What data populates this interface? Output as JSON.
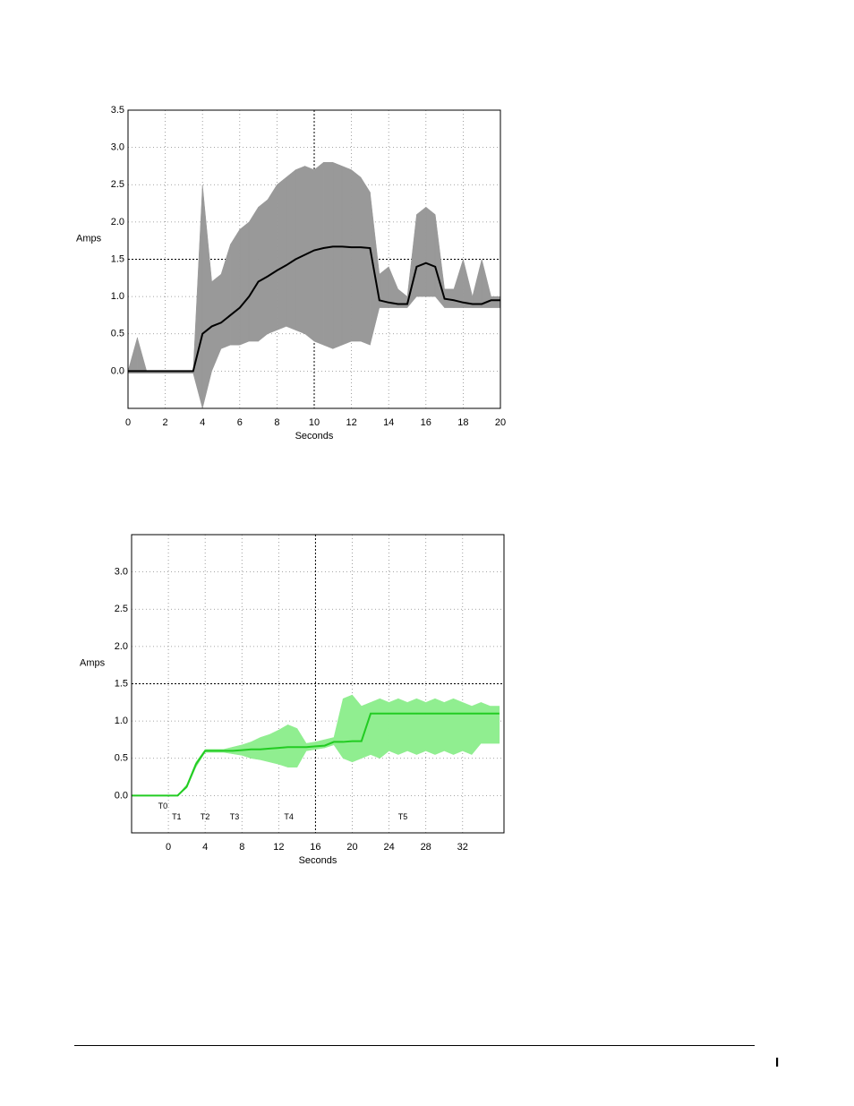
{
  "chart_data": [
    {
      "type": "line",
      "xlabel": "Seconds",
      "ylabel": "Amps",
      "xlim": [
        0,
        20
      ],
      "xticks": [
        0,
        2,
        4,
        6,
        8,
        10,
        12,
        14,
        16,
        18,
        20
      ],
      "ylim": [
        -0.5,
        3.5
      ],
      "yticks": [
        {
          "value": 0,
          "label": "0.0"
        },
        0.5,
        {
          "value": 1,
          "label": "1.0"
        },
        1.5,
        {
          "value": 2,
          "label": "2.0"
        },
        2.5,
        {
          "value": 3,
          "label": "3.0"
        },
        3.5
      ],
      "grid": true,
      "crosshair": {
        "x": 10,
        "y": 1.5
      },
      "x": [
        0,
        0.5,
        1,
        1.5,
        2,
        2.5,
        3,
        3.5,
        4,
        4.5,
        5,
        5.5,
        6,
        6.5,
        7,
        7.5,
        8,
        8.5,
        9,
        9.5,
        10,
        10.5,
        11,
        11.5,
        12,
        12.5,
        13,
        13.5,
        14,
        14.5,
        15,
        15.5,
        16,
        16.5,
        17,
        17.5,
        18,
        18.5,
        19,
        19.5,
        20
      ],
      "series": [
        {
          "color": "#999999",
          "high": [
            0,
            0.45,
            0,
            0,
            0,
            0,
            0,
            0,
            2.5,
            1.2,
            1.3,
            1.7,
            1.9,
            2.0,
            2.2,
            2.3,
            2.5,
            2.6,
            2.7,
            2.75,
            2.7,
            2.8,
            2.8,
            2.75,
            2.7,
            2.6,
            2.4,
            1.3,
            1.4,
            1.1,
            1.0,
            2.1,
            2.2,
            2.1,
            1.1,
            1.1,
            1.5,
            1.0,
            1.5,
            1.0,
            1.0
          ],
          "low": [
            -0.03,
            -0.03,
            -0.03,
            -0.03,
            -0.03,
            -0.03,
            -0.03,
            -0.03,
            -0.5,
            0,
            0.3,
            0.35,
            0.35,
            0.4,
            0.4,
            0.5,
            0.55,
            0.6,
            0.55,
            0.5,
            0.4,
            0.35,
            0.3,
            0.35,
            0.4,
            0.4,
            0.35,
            0.85,
            0.85,
            0.85,
            0.85,
            1.0,
            1.0,
            1.0,
            0.85,
            0.85,
            0.85,
            0.85,
            0.85,
            0.85,
            0.85
          ]
        },
        {
          "color": "#000000",
          "values": [
            0,
            0,
            0,
            0,
            0,
            0,
            0,
            0,
            0.5,
            0.6,
            0.65,
            0.75,
            0.85,
            1.0,
            1.2,
            1.27,
            1.35,
            1.42,
            1.5,
            1.56,
            1.62,
            1.65,
            1.67,
            1.67,
            1.66,
            1.66,
            1.65,
            0.95,
            0.92,
            0.9,
            0.9,
            1.4,
            1.45,
            1.4,
            0.97,
            0.95,
            0.92,
            0.9,
            0.9,
            0.95,
            0.95
          ]
        }
      ]
    },
    {
      "type": "line",
      "xlabel": "Seconds",
      "ylabel": "Amps",
      "xlim": [
        -4,
        36.5
      ],
      "xticks": [
        0,
        4,
        8,
        12,
        16,
        20,
        24,
        28,
        32
      ],
      "ylim": [
        -0.5,
        3.5
      ],
      "yticks": [
        {
          "value": 0,
          "label": "0.0"
        },
        0.5,
        {
          "value": 1,
          "label": "1.0"
        },
        1.5,
        {
          "value": 2,
          "label": "2.0"
        },
        2.5,
        {
          "value": 3,
          "label": "3.0"
        }
      ],
      "grid": true,
      "crosshair": {
        "x": 16,
        "y": 1.5
      },
      "annotations": [
        {
          "text": "T0",
          "x": -0.6,
          "y": -0.15
        },
        {
          "text": "T1",
          "x": 0.9,
          "y": -0.29
        },
        {
          "text": "T2",
          "x": 4,
          "y": -0.29
        },
        {
          "text": "T3",
          "x": 7.2,
          "y": -0.29
        },
        {
          "text": "T4",
          "x": 13.1,
          "y": -0.29
        },
        {
          "text": "T5",
          "x": 25.5,
          "y": -0.29
        }
      ],
      "x": [
        -4,
        -3,
        -2,
        -1,
        0,
        1,
        2,
        3,
        4,
        5,
        6,
        7,
        8,
        9,
        10,
        11,
        12,
        13,
        14,
        15,
        16,
        17,
        18,
        19,
        20,
        21,
        22,
        23,
        24,
        25,
        26,
        27,
        28,
        29,
        30,
        31,
        32,
        33,
        34,
        35,
        36
      ],
      "series": [
        {
          "color": "#90ee90",
          "high": [
            0,
            0,
            0,
            0,
            0,
            0,
            0.15,
            0.45,
            0.62,
            0.62,
            0.62,
            0.65,
            0.68,
            0.72,
            0.78,
            0.82,
            0.88,
            0.95,
            0.9,
            0.7,
            0.72,
            0.75,
            0.78,
            1.3,
            1.35,
            1.2,
            1.25,
            1.3,
            1.25,
            1.3,
            1.25,
            1.3,
            1.25,
            1.3,
            1.25,
            1.3,
            1.25,
            1.2,
            1.25,
            1.2,
            1.2
          ],
          "low": [
            0,
            0,
            0,
            0,
            0,
            0,
            0.1,
            0.38,
            0.58,
            0.58,
            0.58,
            0.56,
            0.54,
            0.5,
            0.48,
            0.45,
            0.42,
            0.38,
            0.38,
            0.6,
            0.62,
            0.64,
            0.68,
            0.5,
            0.45,
            0.5,
            0.55,
            0.5,
            0.6,
            0.55,
            0.6,
            0.55,
            0.6,
            0.55,
            0.6,
            0.55,
            0.6,
            0.55,
            0.7,
            0.7,
            0.7
          ]
        },
        {
          "color": "#22cc22",
          "values": [
            0,
            0,
            0,
            0,
            0,
            0,
            0.12,
            0.42,
            0.6,
            0.6,
            0.6,
            0.6,
            0.61,
            0.62,
            0.62,
            0.63,
            0.64,
            0.65,
            0.65,
            0.65,
            0.66,
            0.67,
            0.72,
            0.72,
            0.73,
            0.73,
            1.1,
            1.1,
            1.1,
            1.1,
            1.1,
            1.1,
            1.1,
            1.1,
            1.1,
            1.1,
            1.1,
            1.1,
            1.1,
            1.1,
            1.1
          ]
        }
      ]
    }
  ],
  "footer": {
    "page": "I"
  }
}
